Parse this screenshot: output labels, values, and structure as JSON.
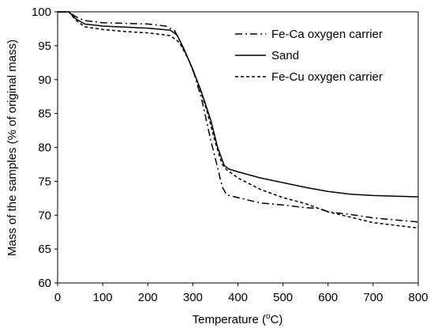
{
  "chart_data": {
    "type": "line",
    "title": "",
    "xlabel": "Temperature (",
    "xlabel_sup": "o",
    "xlabel_end": "C)",
    "ylabel": "Mass of the samples (% of original mass)",
    "xlim": [
      0,
      800
    ],
    "ylim": [
      60,
      100
    ],
    "x_ticks": [
      0,
      100,
      200,
      300,
      400,
      500,
      600,
      700,
      800
    ],
    "y_ticks": [
      60,
      65,
      70,
      75,
      80,
      85,
      90,
      95,
      100
    ],
    "x_tick_labels": [
      "0",
      "100",
      "200",
      "300",
      "400",
      "500",
      "600",
      "700",
      "800"
    ],
    "y_tick_labels": [
      "60",
      "65",
      "70",
      "75",
      "80",
      "85",
      "90",
      "95",
      "100"
    ],
    "grid": false,
    "legend_position": "top-right",
    "series": [
      {
        "name": "Fe-Ca oxygen carrier",
        "style": "dashdot",
        "color": "#000000",
        "points": [
          [
            0,
            100
          ],
          [
            25,
            100
          ],
          [
            40,
            99.3
          ],
          [
            60,
            98.7
          ],
          [
            100,
            98.4
          ],
          [
            200,
            98.2
          ],
          [
            240,
            97.9
          ],
          [
            260,
            97.2
          ],
          [
            280,
            94.5
          ],
          [
            300,
            91.5
          ],
          [
            320,
            87
          ],
          [
            340,
            81
          ],
          [
            355,
            77
          ],
          [
            365,
            74.2
          ],
          [
            375,
            73
          ],
          [
            400,
            72.6
          ],
          [
            450,
            71.8
          ],
          [
            500,
            71.5
          ],
          [
            550,
            71.1
          ],
          [
            580,
            71
          ],
          [
            600,
            70.5
          ],
          [
            650,
            70.1
          ],
          [
            700,
            69.6
          ],
          [
            750,
            69.3
          ],
          [
            800,
            69
          ]
        ]
      },
      {
        "name": "Sand",
        "style": "solid",
        "color": "#000000",
        "points": [
          [
            0,
            100
          ],
          [
            25,
            100
          ],
          [
            40,
            99
          ],
          [
            60,
            98.2
          ],
          [
            100,
            97.9
          ],
          [
            200,
            97.6
          ],
          [
            250,
            97.3
          ],
          [
            265,
            96.6
          ],
          [
            280,
            94.6
          ],
          [
            300,
            91.5
          ],
          [
            320,
            88
          ],
          [
            340,
            84
          ],
          [
            355,
            80
          ],
          [
            370,
            77.3
          ],
          [
            380,
            76.8
          ],
          [
            400,
            76.4
          ],
          [
            450,
            75.5
          ],
          [
            500,
            74.8
          ],
          [
            550,
            74.1
          ],
          [
            600,
            73.5
          ],
          [
            650,
            73.1
          ],
          [
            700,
            72.9
          ],
          [
            750,
            72.8
          ],
          [
            800,
            72.7
          ]
        ]
      },
      {
        "name": "Fe-Cu oxygen carrier",
        "style": "dashed",
        "color": "#000000",
        "points": [
          [
            0,
            100
          ],
          [
            25,
            100
          ],
          [
            40,
            98.8
          ],
          [
            60,
            97.8
          ],
          [
            100,
            97.4
          ],
          [
            150,
            97.1
          ],
          [
            200,
            96.9
          ],
          [
            250,
            96.5
          ],
          [
            270,
            95.5
          ],
          [
            290,
            93
          ],
          [
            310,
            89.7
          ],
          [
            330,
            85.7
          ],
          [
            350,
            80.7
          ],
          [
            365,
            77.5
          ],
          [
            375,
            76.7
          ],
          [
            400,
            75.5
          ],
          [
            450,
            73.8
          ],
          [
            500,
            72.6
          ],
          [
            550,
            71.7
          ],
          [
            600,
            70.5
          ],
          [
            650,
            69.7
          ],
          [
            700,
            68.9
          ],
          [
            750,
            68.5
          ],
          [
            800,
            68.1
          ]
        ]
      }
    ]
  }
}
